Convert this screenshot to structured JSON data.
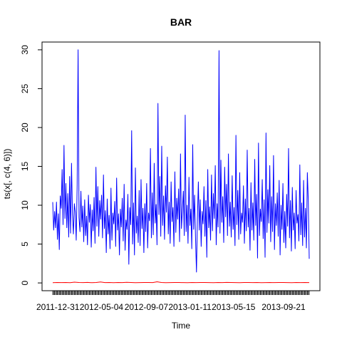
{
  "chart_data": {
    "type": "line",
    "title": "BAR",
    "xlabel": "Time",
    "ylabel": "ts(x[, c(4, 6)])",
    "ylim": [
      -1,
      31
    ],
    "y_ticks": [
      0,
      5,
      10,
      15,
      20,
      25,
      30
    ],
    "y_tick_labels": [
      "0",
      "5",
      "10",
      "15",
      "20",
      "25",
      "30"
    ],
    "x_tick_labels": [
      "2011-12-31",
      "2012-05-04",
      "2012-09-07",
      "2013-01-11",
      "2013-05-15",
      "2013-09-21"
    ],
    "x_tick_pos": [
      0.02,
      0.19,
      0.365,
      0.535,
      0.705,
      0.9
    ],
    "legend": "none",
    "grid": false,
    "series": [
      {
        "color": "#0000ff",
        "values": [
          10.4,
          6.8,
          9.2,
          7.1,
          10.4,
          5.6,
          8.9,
          4.3,
          11.2,
          9.6,
          14.6,
          7.5,
          17.7,
          8.3,
          12.8,
          7.1,
          11.5,
          5.9,
          13.7,
          6.4,
          15.4,
          8.8,
          6.3,
          10.2,
          9.1,
          5.5,
          12.6,
          30.0,
          8.4,
          6.6,
          11.8,
          7.2,
          9.9,
          5.3,
          10.7,
          6.1,
          8.6,
          4.9,
          11.3,
          7.8,
          10.1,
          4.6,
          9.4,
          6.7,
          11.0,
          5.1,
          14.9,
          7.3,
          12.4,
          6.0,
          10.6,
          8.2,
          11.3,
          5.8,
          13.9,
          7.0,
          9.3,
          3.9,
          10.8,
          6.3,
          8.7,
          4.4,
          12.2,
          5.5,
          9.0,
          7.6,
          10.5,
          4.7,
          13.5,
          6.8,
          8.9,
          3.6,
          9.5,
          7.2,
          10.9,
          5.4,
          12.7,
          4.2,
          8.1,
          6.9,
          11.4,
          2.4,
          9.7,
          7.5,
          19.6,
          5.0,
          10.3,
          3.6,
          14.8,
          6.4,
          8.6,
          5.2,
          11.9,
          4.8,
          13.3,
          7.0,
          9.6,
          3.9,
          10.2,
          6.6,
          12.8,
          4.5,
          9.0,
          8.0,
          17.3,
          5.8,
          11.6,
          6.2,
          15.4,
          7.7,
          10.1,
          4.9,
          23.1,
          8.8,
          13.7,
          6.0,
          17.6,
          7.4,
          11.2,
          5.6,
          12.5,
          9.1,
          16.2,
          6.3,
          10.4,
          5.1,
          13.0,
          7.9,
          9.7,
          4.7,
          14.3,
          6.5,
          10.9,
          8.2,
          12.1,
          5.3,
          16.6,
          7.0,
          9.4,
          11.8,
          6.1,
          21.6,
          6.6,
          10.0,
          5.1,
          13.6,
          7.4,
          9.5,
          4.4,
          17.8,
          6.9,
          11.3,
          5.7,
          1.4,
          8.3,
          13.0,
          6.8,
          10.7,
          4.7,
          9.2,
          7.6,
          12.4,
          6.0,
          10.6,
          3.3,
          14.6,
          7.1,
          9.8,
          5.5,
          13.9,
          6.7,
          11.5,
          8.3,
          15.1,
          4.9,
          10.2,
          7.2,
          29.9,
          6.4,
          15.8,
          7.8,
          11.1,
          5.2,
          14.9,
          8.5,
          12.7,
          6.1,
          16.6,
          7.3,
          10.4,
          5.9,
          13.8,
          6.9,
          9.7,
          4.8,
          19.0,
          7.5,
          11.9,
          5.6,
          14.2,
          6.3,
          9.0,
          7.8,
          12.5,
          5.1,
          10.8,
          6.7,
          17.1,
          7.2,
          9.6,
          4.2,
          12.9,
          6.8,
          10.3,
          5.5,
          15.9,
          7.4,
          11.4,
          3.2,
          18.0,
          6.1,
          9.5,
          7.9,
          13.3,
          5.7,
          10.7,
          3.3,
          19.3,
          6.5,
          12.0,
          7.7,
          15.1,
          5.3,
          11.1,
          6.6,
          16.4,
          4.3,
          10.2,
          7.4,
          11.6,
          6.0,
          13.2,
          3.6,
          10.0,
          6.9,
          12.8,
          5.2,
          9.2,
          4.5,
          11.4,
          7.3,
          17.3,
          5.8,
          10.6,
          4.1,
          12.3,
          6.8,
          9.0,
          4.4,
          11.9,
          7.7,
          8.8,
          5.4,
          15.2,
          6.2,
          10.3,
          4.8,
          13.2,
          5.9,
          9.6,
          4.5,
          14.2,
          10.6,
          3.1
        ]
      },
      {
        "color": "#ff0000",
        "values": [
          0.03,
          0.05,
          0.04,
          0.06,
          0.03,
          0.1,
          0.05,
          0.04,
          0.07,
          0.03,
          0.05,
          0.12,
          0.04,
          0.05,
          0.03,
          0.06,
          0.04,
          0.08,
          0.05,
          0.03,
          0.04,
          0.05,
          0.06,
          0.04,
          0.15,
          0.05,
          0.03,
          0.04,
          0.06,
          0.05,
          0.04,
          0.03,
          0.05,
          0.04,
          0.06,
          0.05,
          0.04,
          0.03,
          0.05,
          0.04,
          0.07,
          0.05,
          0.04,
          0.03,
          0.05,
          0.06,
          0.04,
          0.05,
          0.03,
          0.04,
          0.05,
          0.04,
          0.06,
          0.05,
          0.04,
          0.03,
          0.05,
          0.04,
          0.06,
          0.04
        ]
      }
    ]
  }
}
